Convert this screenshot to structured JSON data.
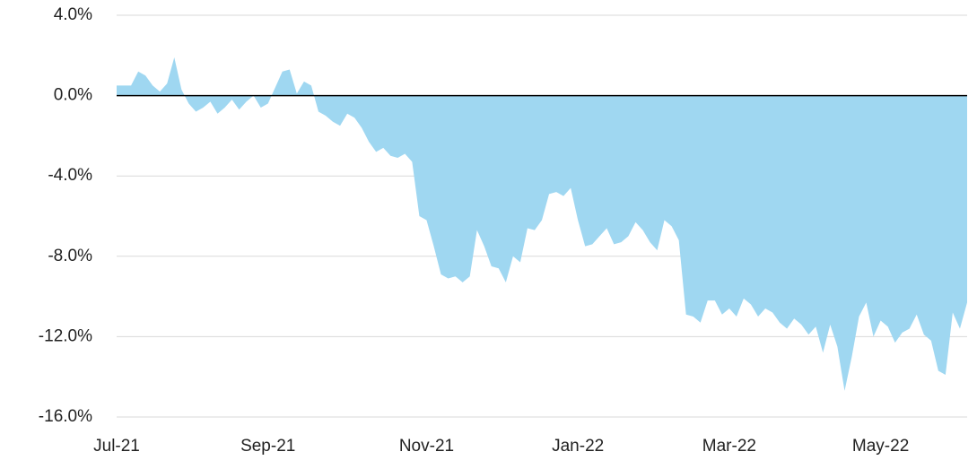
{
  "chart_data": {
    "type": "area",
    "categories": [
      "Jul-21",
      null,
      null,
      null,
      null,
      null,
      null,
      null,
      null,
      null,
      null,
      null,
      null,
      null,
      null,
      null,
      null,
      null,
      null,
      null,
      null,
      "Sep-21",
      null,
      null,
      null,
      null,
      null,
      null,
      null,
      null,
      null,
      null,
      null,
      null,
      null,
      null,
      null,
      null,
      null,
      null,
      null,
      null,
      null,
      "Nov-21",
      null,
      null,
      null,
      null,
      null,
      null,
      null,
      null,
      null,
      null,
      null,
      null,
      null,
      null,
      null,
      null,
      null,
      null,
      null,
      null,
      "Jan-22",
      null,
      null,
      null,
      null,
      null,
      null,
      null,
      null,
      null,
      null,
      null,
      null,
      null,
      null,
      null,
      null,
      null,
      null,
      null,
      null,
      "Mar-22",
      null,
      null,
      null,
      null,
      null,
      null,
      null,
      null,
      null,
      null,
      null,
      null,
      null,
      null,
      null,
      null,
      null,
      null,
      null,
      null,
      "May-22",
      null,
      null,
      null,
      null,
      null,
      null,
      null,
      null,
      null,
      null,
      null,
      null
    ],
    "series": [
      {
        "color": "#9fd7f1",
        "values": [
          0.5,
          0.5,
          0.5,
          1.2,
          1.0,
          0.5,
          0.2,
          0.6,
          1.9,
          0.3,
          -0.4,
          -0.8,
          -0.6,
          -0.3,
          -0.9,
          -0.6,
          -0.2,
          -0.7,
          -0.3,
          0.0,
          -0.6,
          -0.4,
          0.4,
          1.2,
          1.3,
          0.1,
          0.7,
          0.5,
          -0.8,
          -1.0,
          -1.3,
          -1.5,
          -0.9,
          -1.1,
          -1.6,
          -2.3,
          -2.8,
          -2.6,
          -3.0,
          -3.1,
          -2.9,
          -3.3,
          -6.0,
          -6.2,
          -7.5,
          -8.9,
          -9.1,
          -9.0,
          -9.3,
          -9.0,
          -6.7,
          -7.5,
          -8.5,
          -8.6,
          -9.3,
          -8.0,
          -8.3,
          -6.6,
          -6.7,
          -6.2,
          -4.9,
          -4.8,
          -5.0,
          -4.6,
          -6.2,
          -7.5,
          -7.4,
          -7.0,
          -6.6,
          -7.4,
          -7.3,
          -7.0,
          -6.3,
          -6.7,
          -7.3,
          -7.7,
          -6.2,
          -6.5,
          -7.2,
          -10.9,
          -11.0,
          -11.3,
          -10.2,
          -10.2,
          -10.9,
          -10.6,
          -11.0,
          -10.1,
          -10.4,
          -11.0,
          -10.6,
          -10.8,
          -11.3,
          -11.6,
          -11.1,
          -11.4,
          -11.9,
          -11.5,
          -12.8,
          -11.4,
          -12.5,
          -14.7,
          -13.0,
          -11.0,
          -10.3,
          -12.0,
          -11.2,
          -11.5,
          -12.3,
          -11.8,
          -11.6,
          -10.9,
          -11.9,
          -12.2,
          -13.7,
          -13.9,
          -10.8,
          -11.6,
          -10.3
        ]
      }
    ],
    "ylim": [
      -16,
      4
    ],
    "yticks": [
      {
        "value": -16,
        "label": "-16.0%"
      },
      {
        "value": -12,
        "label": "-12.0%"
      },
      {
        "value": -8,
        "label": "-8.0%"
      },
      {
        "value": -4,
        "label": "-4.0%"
      },
      {
        "value": 0,
        "label": "0.0%"
      },
      {
        "value": 4,
        "label": "4.0%"
      }
    ],
    "grid": true
  }
}
